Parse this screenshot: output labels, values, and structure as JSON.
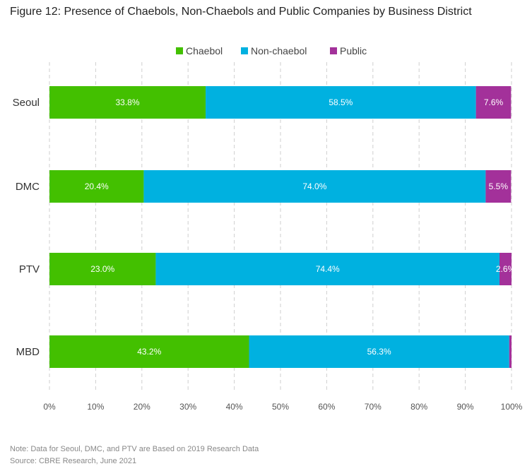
{
  "title": "Figure 12: Presence of Chaebols, Non-Chaebols and Public Companies by Business District",
  "notes": {
    "note": "Note: Data for Seoul, DMC, and PTV are Based on 2019 Research Data",
    "source": "Source: CBRE Research, June 2021"
  },
  "chart_data": {
    "type": "bar",
    "orientation": "horizontal",
    "stacked": true,
    "categories": [
      "Seoul",
      "DMC",
      "PTV",
      "MBD"
    ],
    "series": [
      {
        "name": "Chaebol",
        "color": "#43c000",
        "values": [
          33.8,
          20.4,
          23.0,
          43.2
        ],
        "labels": [
          "33.8%",
          "20.4%",
          "23.0%",
          "43.2%"
        ]
      },
      {
        "name": "Non-chaebol",
        "color": "#00b1e0",
        "values": [
          58.5,
          74.0,
          74.4,
          56.3
        ],
        "labels": [
          "58.5%",
          "74.0%",
          "74.4%",
          "56.3%"
        ]
      },
      {
        "name": "Public",
        "color": "#a3319a",
        "values": [
          7.6,
          5.5,
          2.6,
          0.5
        ],
        "labels": [
          "7.6%",
          "5.5%",
          "2.6%",
          ""
        ]
      }
    ],
    "xlim": [
      0,
      100
    ],
    "xticks": [
      "0%",
      "10%",
      "20%",
      "30%",
      "40%",
      "50%",
      "60%",
      "70%",
      "80%",
      "90%",
      "100%"
    ],
    "grid": "vertical-dashed",
    "legend": "top-center"
  }
}
